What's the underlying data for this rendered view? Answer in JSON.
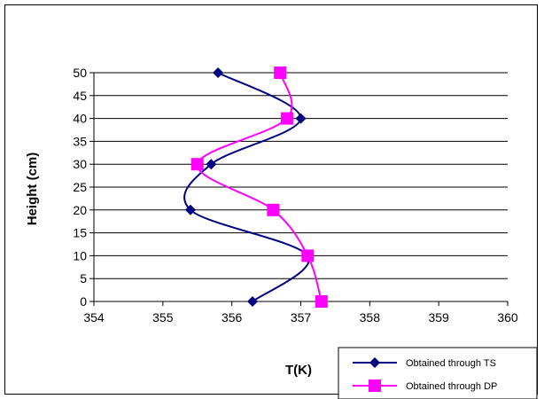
{
  "chart_data": {
    "type": "line",
    "xlabel": "T(K)",
    "ylabel": "Height (cm)",
    "xlim": [
      354,
      360
    ],
    "ylim": [
      0,
      50
    ],
    "x_ticks": [
      354,
      355,
      356,
      357,
      358,
      359,
      360
    ],
    "y_ticks": [
      0,
      5,
      10,
      15,
      20,
      25,
      30,
      35,
      40,
      45,
      50
    ],
    "grid": "horizontal",
    "legend_position": "bottom-right",
    "series": [
      {
        "name": "Obtained through TS",
        "color": "#000080",
        "marker": "diamond",
        "points": [
          {
            "x": 356.3,
            "y": 0
          },
          {
            "x": 357.1,
            "y": 10
          },
          {
            "x": 355.4,
            "y": 20
          },
          {
            "x": 355.7,
            "y": 30
          },
          {
            "x": 357.0,
            "y": 40
          },
          {
            "x": 355.8,
            "y": 50
          }
        ]
      },
      {
        "name": "Obtained through DP",
        "color": "#ff00ff",
        "marker": "square",
        "points": [
          {
            "x": 357.3,
            "y": 0
          },
          {
            "x": 357.1,
            "y": 10
          },
          {
            "x": 356.6,
            "y": 20
          },
          {
            "x": 355.5,
            "y": 30
          },
          {
            "x": 356.8,
            "y": 40
          },
          {
            "x": 356.7,
            "y": 50
          }
        ]
      }
    ]
  }
}
